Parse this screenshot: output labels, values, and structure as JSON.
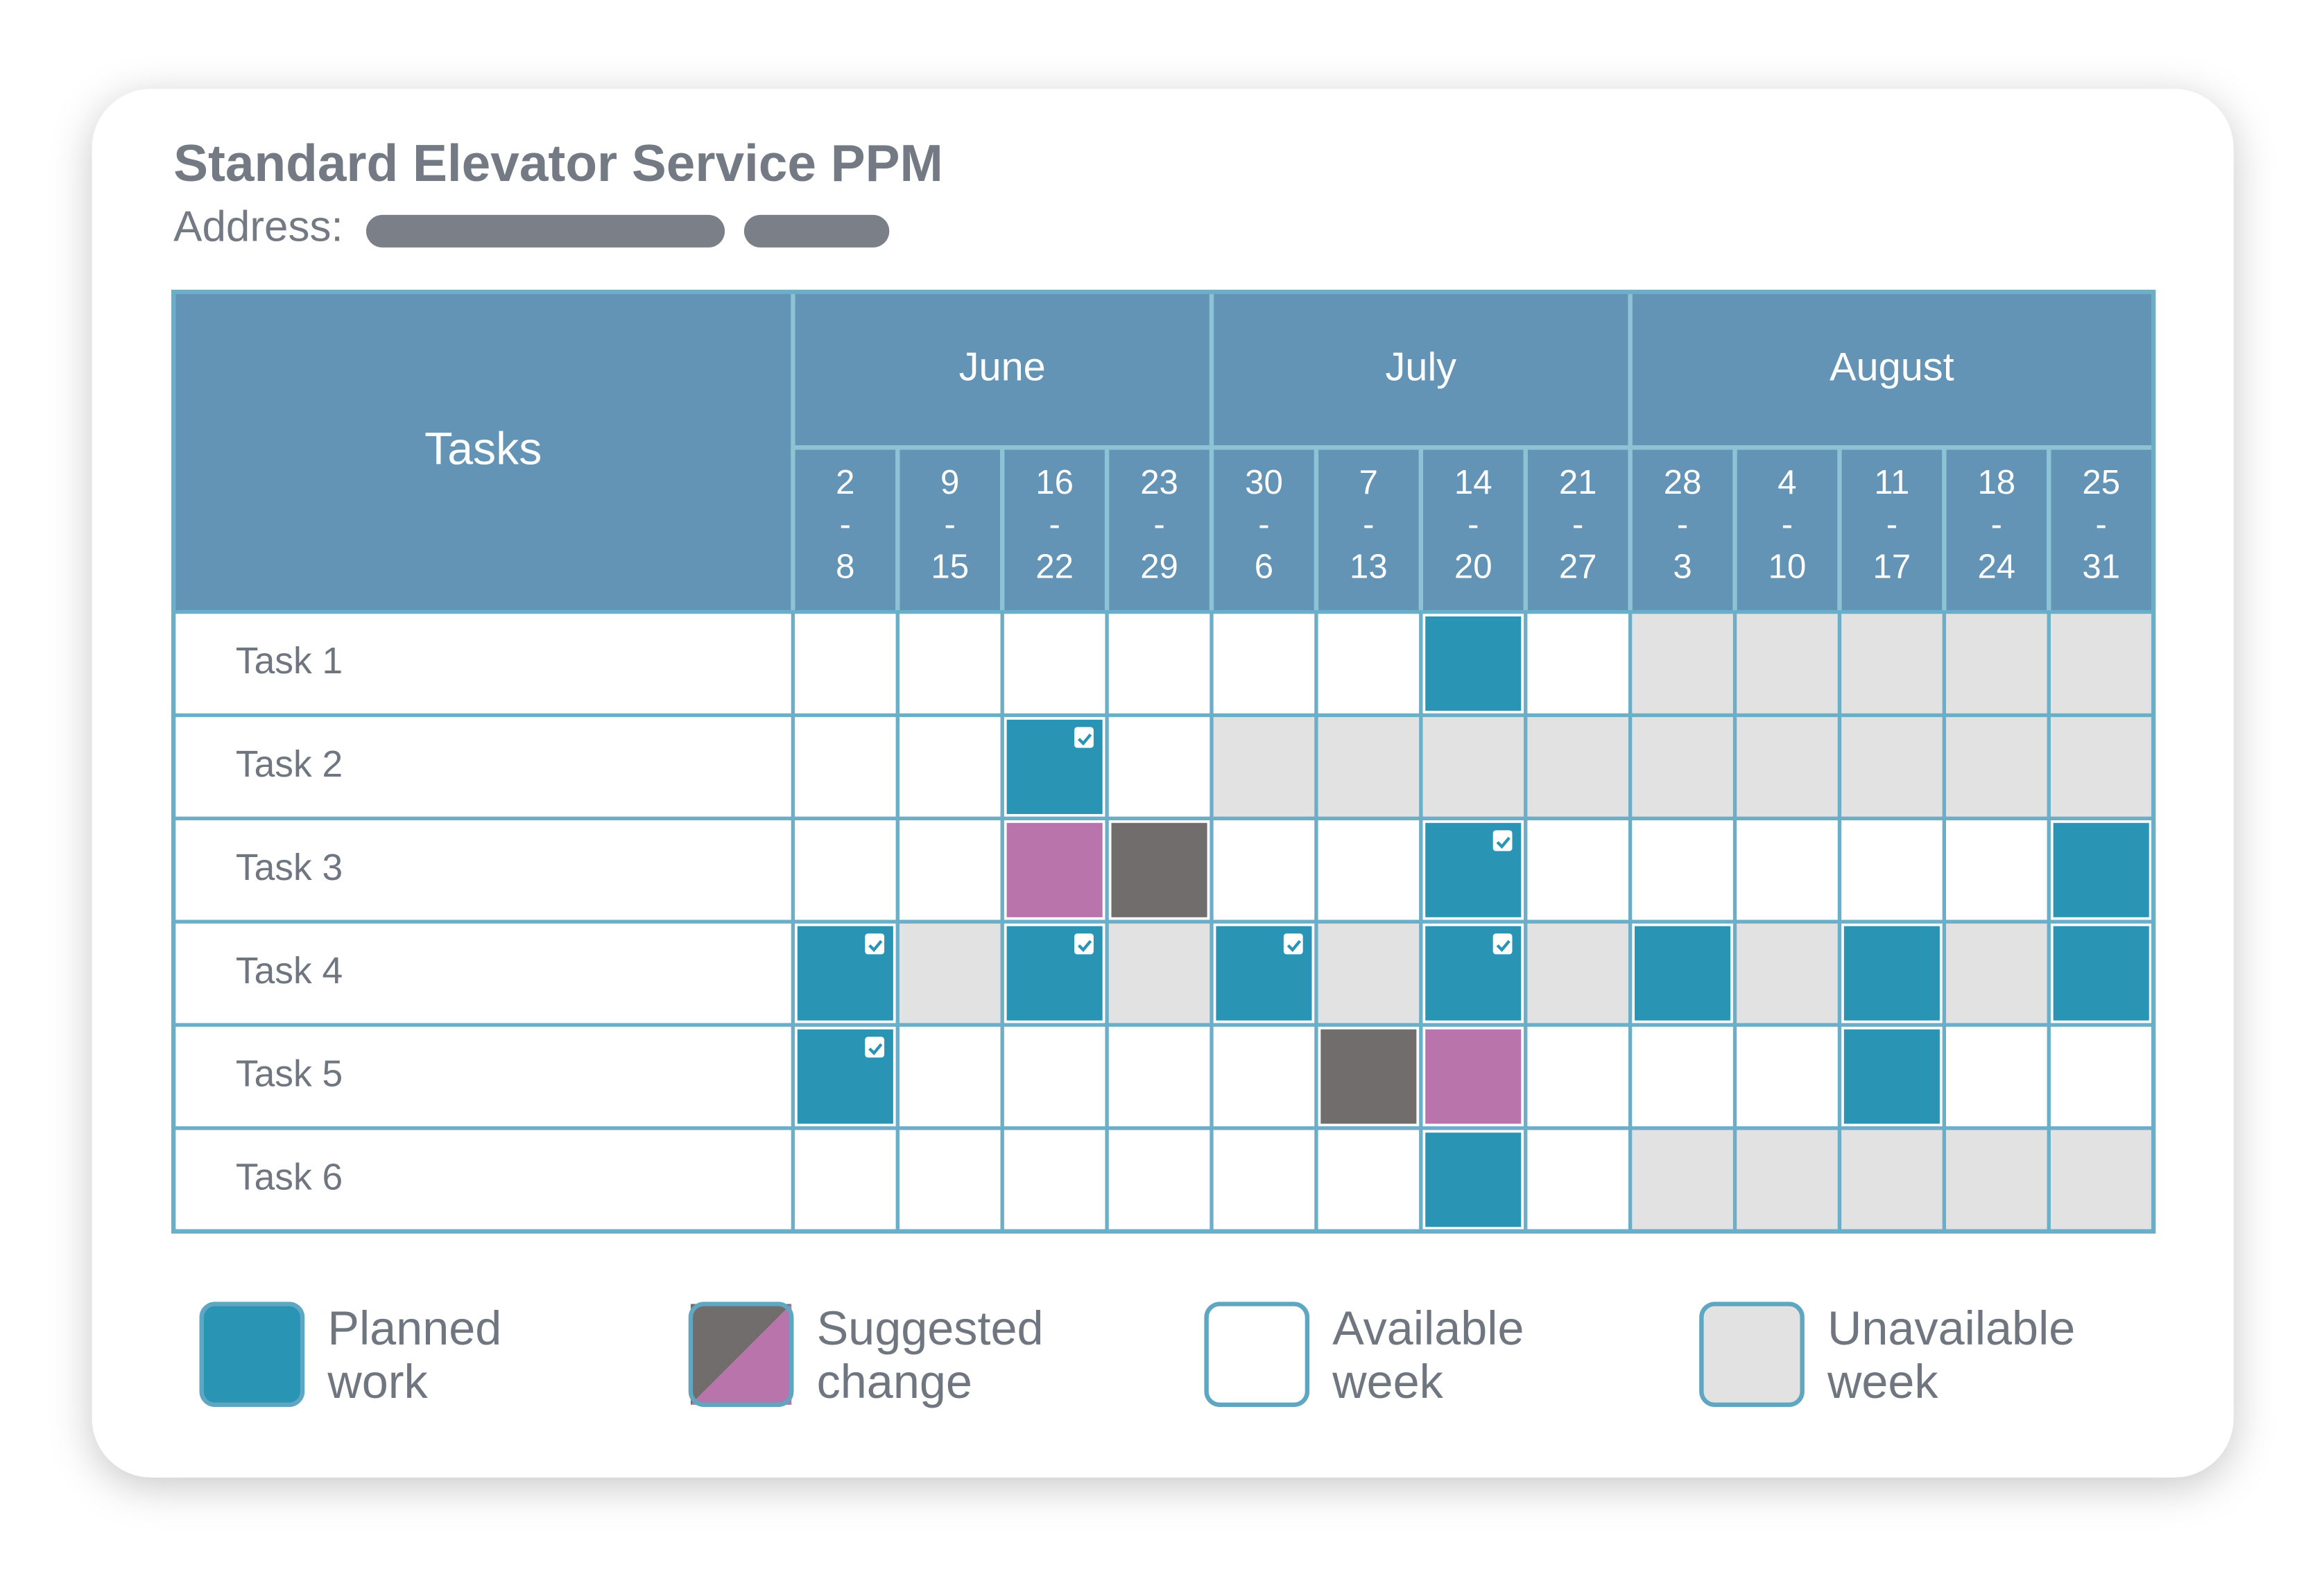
{
  "header": {
    "title": "Standard Elevator Service PPM",
    "address_label": "Address:"
  },
  "table": {
    "tasks_header": "Tasks",
    "months": [
      {
        "label": "June",
        "weeks": 4
      },
      {
        "label": "July",
        "weeks": 4
      },
      {
        "label": "August",
        "weeks": 5
      }
    ],
    "weeks": [
      [
        "2",
        "-",
        "8"
      ],
      [
        "9",
        "-",
        "15"
      ],
      [
        "16",
        "-",
        "22"
      ],
      [
        "23",
        "-",
        "29"
      ],
      [
        "30",
        "-",
        "6"
      ],
      [
        "7",
        "-",
        "13"
      ],
      [
        "14",
        "-",
        "20"
      ],
      [
        "21",
        "-",
        "27"
      ],
      [
        "28",
        "-",
        "3"
      ],
      [
        "4",
        "-",
        "10"
      ],
      [
        "11",
        "-",
        "17"
      ],
      [
        "18",
        "-",
        "24"
      ],
      [
        "25",
        "-",
        "31"
      ]
    ],
    "rows": [
      {
        "task": "Task 1",
        "cells": [
          "available",
          "available",
          "available",
          "available",
          "available",
          "available",
          "planned",
          "available",
          "unavailable",
          "unavailable",
          "unavailable",
          "unavailable",
          "unavailable"
        ]
      },
      {
        "task": "Task 2",
        "cells": [
          "available",
          "available",
          "planned-done",
          "available",
          "unavailable",
          "unavailable",
          "unavailable",
          "unavailable",
          "unavailable",
          "unavailable",
          "unavailable",
          "unavailable",
          "unavailable"
        ]
      },
      {
        "task": "Task 3",
        "cells": [
          "available",
          "available",
          "suggested-new",
          "suggested-old",
          "available",
          "available",
          "planned-done",
          "available",
          "available",
          "available",
          "available",
          "available",
          "planned"
        ]
      },
      {
        "task": "Task 4",
        "cells": [
          "planned-done",
          "unavailable",
          "planned-done",
          "unavailable",
          "planned-done",
          "unavailable",
          "planned-done",
          "unavailable",
          "planned",
          "unavailable",
          "planned",
          "unavailable",
          "planned"
        ]
      },
      {
        "task": "Task 5",
        "cells": [
          "planned-done",
          "available",
          "available",
          "available",
          "available",
          "suggested-old",
          "suggested-new",
          "available",
          "available",
          "available",
          "planned",
          "available",
          "available"
        ]
      },
      {
        "task": "Task 6",
        "cells": [
          "available",
          "available",
          "available",
          "available",
          "available",
          "available",
          "planned",
          "available",
          "unavailable",
          "unavailable",
          "unavailable",
          "unavailable",
          "unavailable"
        ]
      }
    ]
  },
  "legend": [
    {
      "kind": "planned",
      "lines": [
        "Planned",
        "work"
      ]
    },
    {
      "kind": "suggested",
      "lines": [
        "Suggested",
        "change"
      ]
    },
    {
      "kind": "available",
      "lines": [
        "Available",
        "week"
      ]
    },
    {
      "kind": "unavailable",
      "lines": [
        "Unavailable",
        "week"
      ]
    }
  ]
}
